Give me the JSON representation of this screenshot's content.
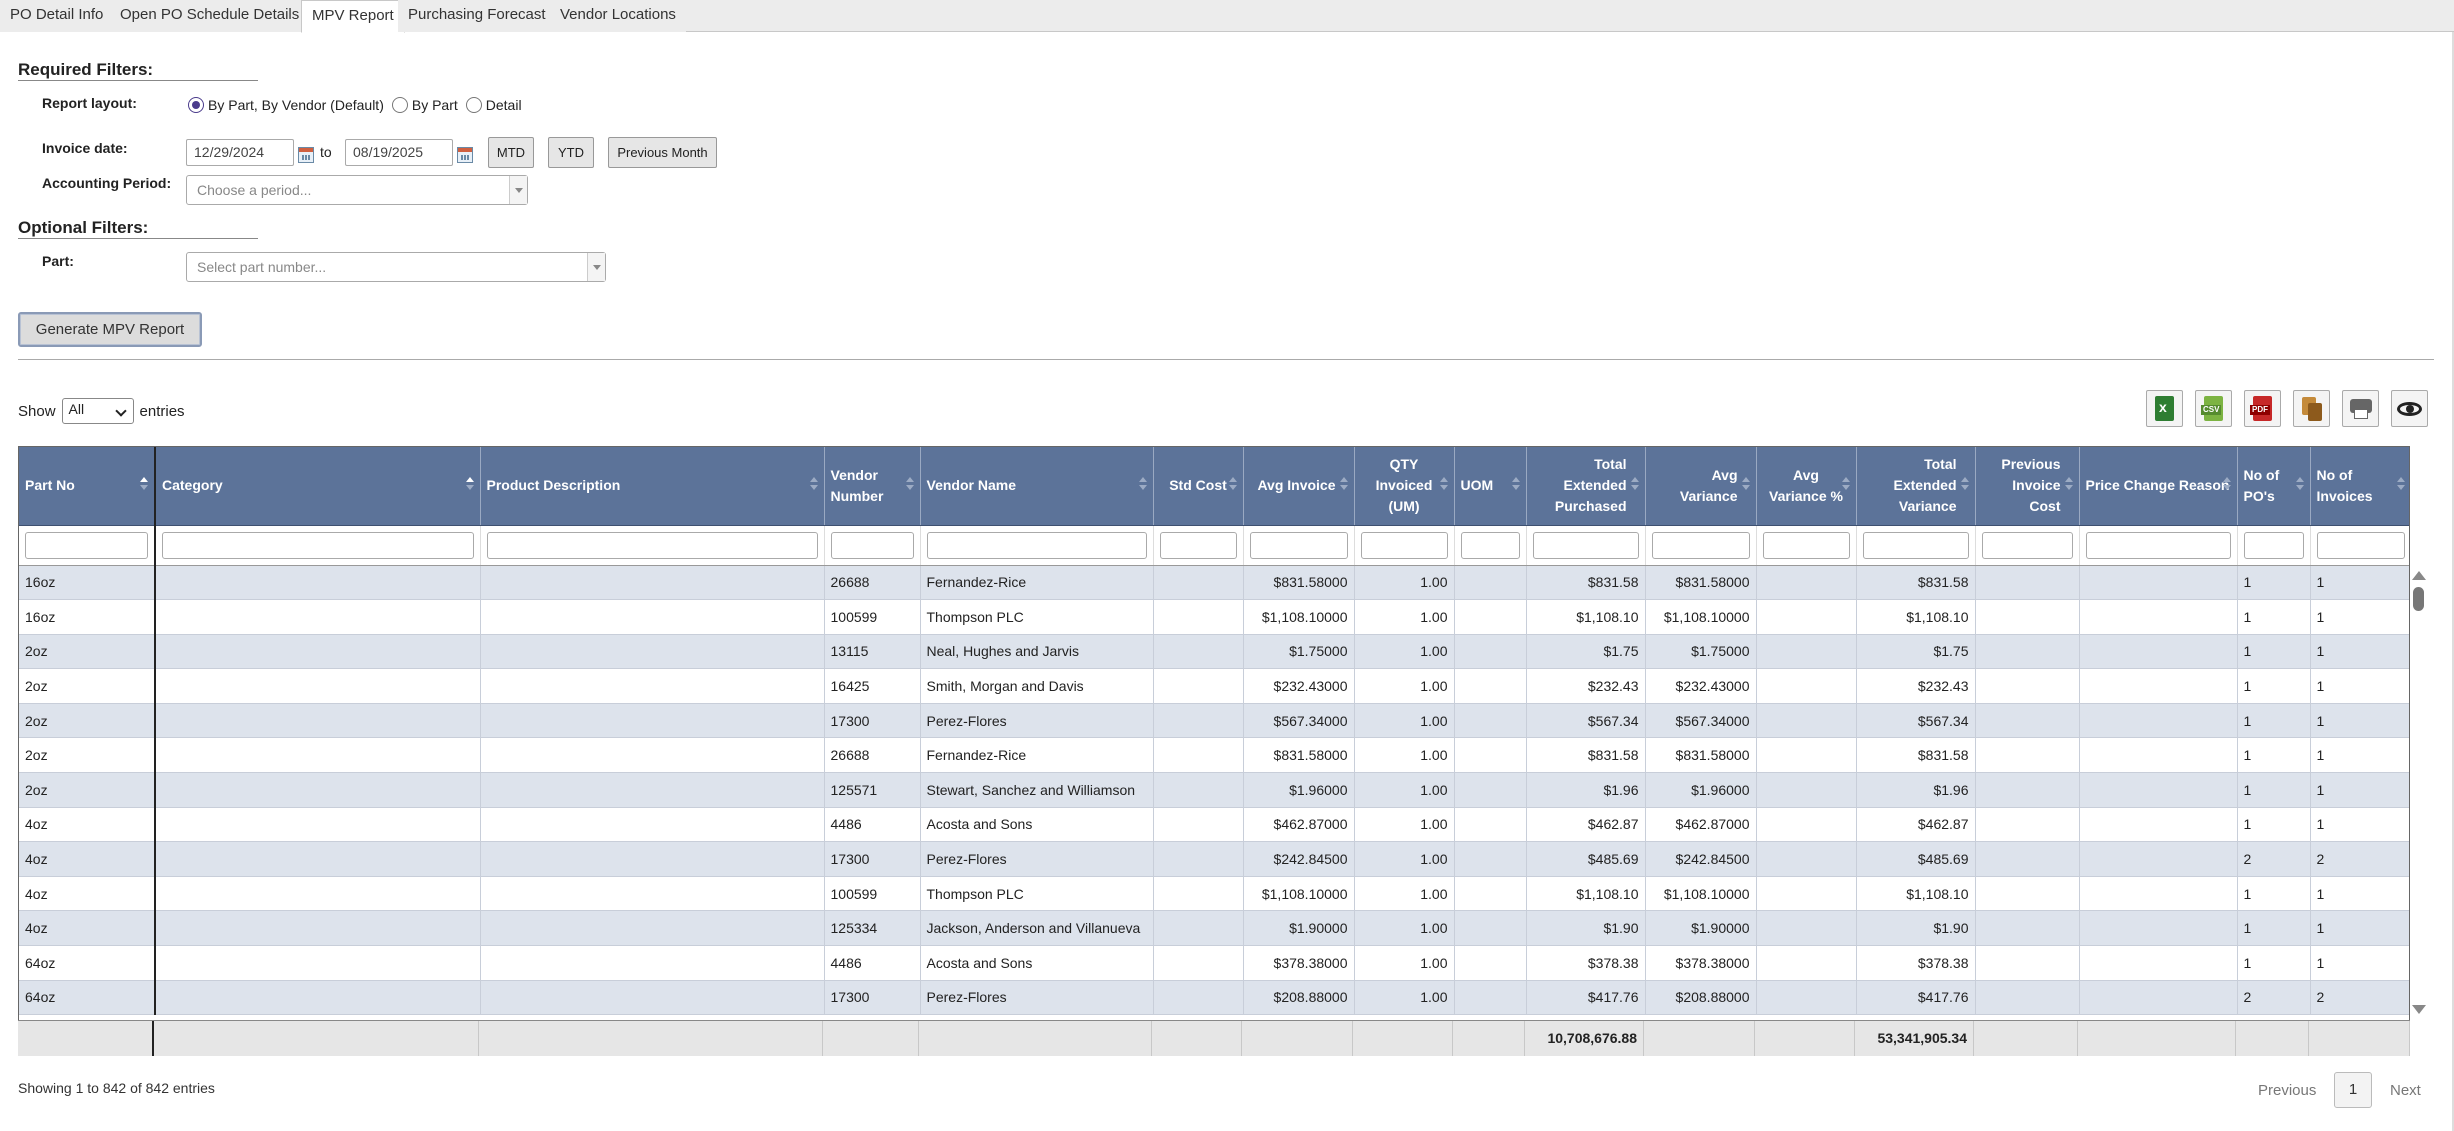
{
  "tabs": [
    {
      "label": "PO Detail Info"
    },
    {
      "label": "Open PO Schedule Details"
    },
    {
      "label": "MPV Report"
    },
    {
      "label": "Purchasing Forecast"
    },
    {
      "label": "Vendor Locations"
    }
  ],
  "filters": {
    "required_title": "Required Filters:",
    "report_layout_label": "Report layout:",
    "layout_options": [
      "By Part, By Vendor (Default)",
      "By Part",
      "Detail"
    ],
    "selected_layout": "By Part, By Vendor (Default)",
    "invoice_date_label": "Invoice date:",
    "date_from": "12/29/2024",
    "to_label": "to",
    "date_to": "08/19/2025",
    "mtd_label": "MTD",
    "ytd_label": "YTD",
    "prev_month_label": "Previous Month",
    "accounting_period_label": "Accounting Period:",
    "accounting_period_placeholder": "Choose a period...",
    "optional_title": "Optional Filters:",
    "part_label": "Part:",
    "part_placeholder": "Select part number...",
    "generate_label": "Generate MPV Report"
  },
  "length": {
    "show_label": "Show",
    "selected": "All",
    "entries_label": "entries"
  },
  "export_icons": [
    "excel-icon",
    "csv-icon",
    "pdf-icon",
    "copy-icon",
    "print-icon",
    "column-visibility-icon"
  ],
  "table": {
    "headers": [
      "Part No",
      "Category",
      "Product Description",
      "Vendor Number",
      "Vendor Name",
      "Std Cost",
      "Avg Invoice",
      "QTY Invoiced (UM)",
      "UOM",
      "Total Extended Purchased",
      "Avg Variance",
      "Avg Variance %",
      "Total Extended Variance",
      "Previous Invoice Cost",
      "Price Change Reason",
      "No of PO's",
      "No of Invoices"
    ],
    "rows": [
      [
        "16oz",
        "",
        "",
        "26688",
        "Fernandez-Rice",
        "",
        "$831.58000",
        "1.00",
        "",
        "$831.58",
        "$831.58000",
        "",
        "$831.58",
        "",
        "",
        "1",
        "1"
      ],
      [
        "16oz",
        "",
        "",
        "100599",
        "Thompson PLC",
        "",
        "$1,108.10000",
        "1.00",
        "",
        "$1,108.10",
        "$1,108.10000",
        "",
        "$1,108.10",
        "",
        "",
        "1",
        "1"
      ],
      [
        "2oz",
        "",
        "",
        "13115",
        "Neal, Hughes and Jarvis",
        "",
        "$1.75000",
        "1.00",
        "",
        "$1.75",
        "$1.75000",
        "",
        "$1.75",
        "",
        "",
        "1",
        "1"
      ],
      [
        "2oz",
        "",
        "",
        "16425",
        "Smith, Morgan and Davis",
        "",
        "$232.43000",
        "1.00",
        "",
        "$232.43",
        "$232.43000",
        "",
        "$232.43",
        "",
        "",
        "1",
        "1"
      ],
      [
        "2oz",
        "",
        "",
        "17300",
        "Perez-Flores",
        "",
        "$567.34000",
        "1.00",
        "",
        "$567.34",
        "$567.34000",
        "",
        "$567.34",
        "",
        "",
        "1",
        "1"
      ],
      [
        "2oz",
        "",
        "",
        "26688",
        "Fernandez-Rice",
        "",
        "$831.58000",
        "1.00",
        "",
        "$831.58",
        "$831.58000",
        "",
        "$831.58",
        "",
        "",
        "1",
        "1"
      ],
      [
        "2oz",
        "",
        "",
        "125571",
        "Stewart, Sanchez and Williamson",
        "",
        "$1.96000",
        "1.00",
        "",
        "$1.96",
        "$1.96000",
        "",
        "$1.96",
        "",
        "",
        "1",
        "1"
      ],
      [
        "4oz",
        "",
        "",
        "4486",
        "Acosta and Sons",
        "",
        "$462.87000",
        "1.00",
        "",
        "$462.87",
        "$462.87000",
        "",
        "$462.87",
        "",
        "",
        "1",
        "1"
      ],
      [
        "4oz",
        "",
        "",
        "17300",
        "Perez-Flores",
        "",
        "$242.84500",
        "1.00",
        "",
        "$485.69",
        "$242.84500",
        "",
        "$485.69",
        "",
        "",
        "2",
        "2"
      ],
      [
        "4oz",
        "",
        "",
        "100599",
        "Thompson PLC",
        "",
        "$1,108.10000",
        "1.00",
        "",
        "$1,108.10",
        "$1,108.10000",
        "",
        "$1,108.10",
        "",
        "",
        "1",
        "1"
      ],
      [
        "4oz",
        "",
        "",
        "125334",
        "Jackson, Anderson and Villanueva",
        "",
        "$1.90000",
        "1.00",
        "",
        "$1.90",
        "$1.90000",
        "",
        "$1.90",
        "",
        "",
        "1",
        "1"
      ],
      [
        "64oz",
        "",
        "",
        "4486",
        "Acosta and Sons",
        "",
        "$378.38000",
        "1.00",
        "",
        "$378.38",
        "$378.38000",
        "",
        "$378.38",
        "",
        "",
        "1",
        "1"
      ],
      [
        "64oz",
        "",
        "",
        "17300",
        "Perez-Flores",
        "",
        "$208.88000",
        "1.00",
        "",
        "$417.76",
        "$208.88000",
        "",
        "$417.76",
        "",
        "",
        "2",
        "2"
      ]
    ],
    "totals": {
      "total_extended_purchased": "10,708,676.88",
      "total_extended_variance": "53,341,905.34"
    }
  },
  "footer": {
    "info": "Showing 1 to 842 of 842 entries",
    "previous_label": "Previous",
    "current_page": "1",
    "next_label": "Next"
  }
}
